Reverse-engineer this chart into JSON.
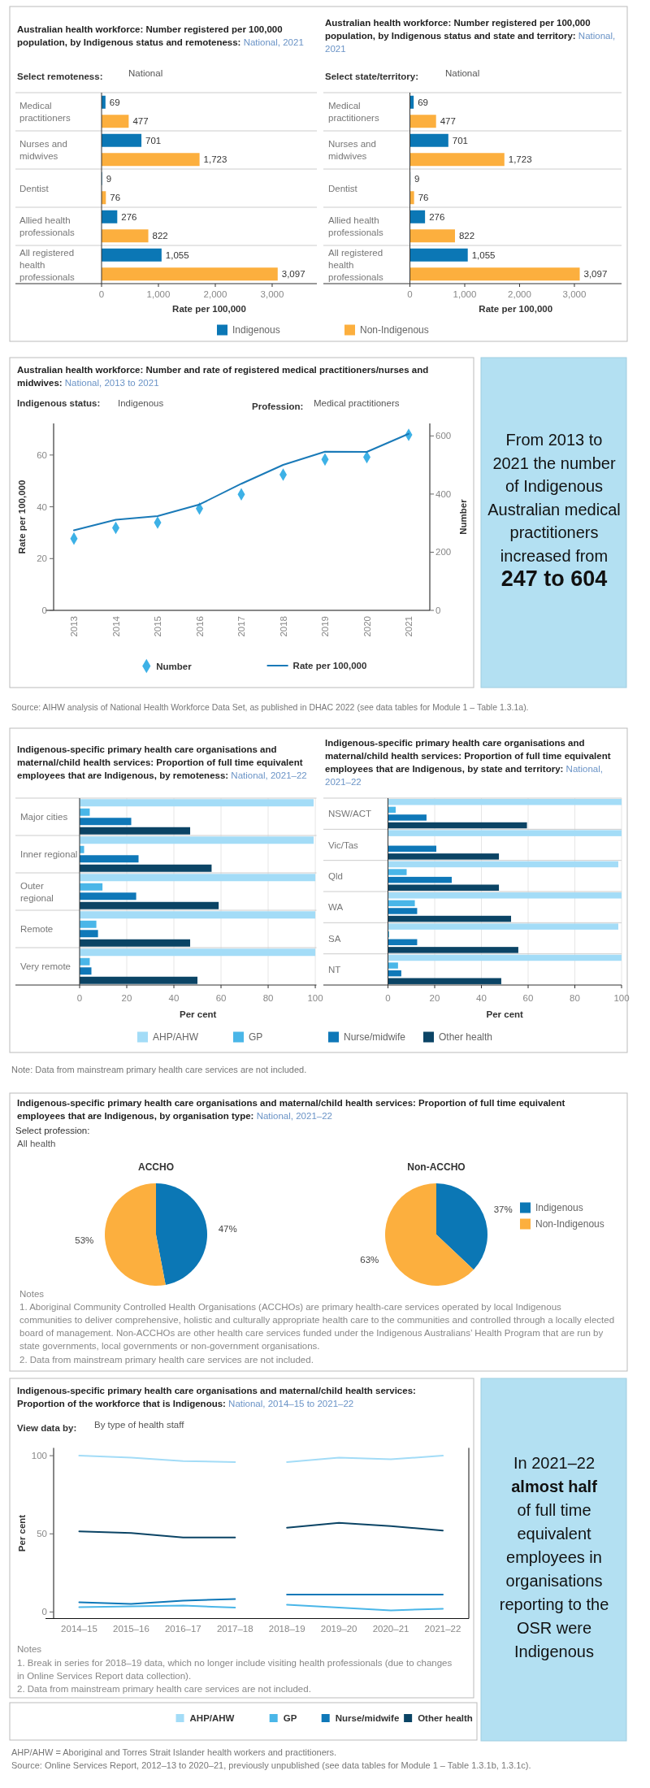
{
  "chart_data": [
    {
      "type": "bar",
      "orientation": "horizontal",
      "title": "Australian health workforce: Number registered per 100,000 population, by Indigenous status and remoteness:",
      "subtitle": "National, 2021",
      "annotations": [
        "Select remoteness:",
        "National"
      ],
      "categories": [
        "Medical practitioners",
        "Nurses and midwives",
        "Dentist",
        "Allied health professionals",
        "All registered health professionals"
      ],
      "series": [
        {
          "name": "Indigenous",
          "color": "#0b77b5",
          "values": [
            69,
            701,
            9,
            276,
            1055
          ],
          "value_labels": [
            "69",
            "701",
            "9",
            "276",
            "1,055"
          ]
        },
        {
          "name": "Non-Indigenous",
          "color": "#fcaf3e",
          "values": [
            477,
            1723,
            76,
            822,
            3097
          ],
          "value_labels": [
            "477",
            "1,723",
            "76",
            "822",
            "3,097"
          ]
        }
      ],
      "xlim": [
        0,
        3786
      ],
      "xticks": [
        0,
        {
          "value": 1000,
          "label": "1,000"
        },
        {
          "value": 2000,
          "label": "2,000"
        },
        {
          "value": 3000,
          "label": "3,000"
        }
      ],
      "xlabel": "Rate per 100,000",
      "legend": "bottom"
    },
    {
      "type": "bar",
      "orientation": "horizontal",
      "title": "Australian health workforce: Number registered per 100,000 population, by Indigenous status and state and territory:",
      "subtitle": "National, 2021",
      "annotations": [
        "Select state/territory:",
        "National"
      ],
      "categories": [
        "Medical practitioners",
        "Nurses and midwives",
        "Dentist",
        "Allied health professionals",
        "All registered health professionals"
      ],
      "series": [
        {
          "color": "#0b77b5",
          "values": [
            69,
            701,
            9,
            276,
            1055
          ],
          "value_labels": [
            "69",
            "701",
            "9",
            "276",
            "1,055"
          ]
        },
        {
          "color": "#fcaf3e",
          "values": [
            477,
            1723,
            76,
            822,
            3097
          ],
          "value_labels": [
            "477",
            "1,723",
            "76",
            "822",
            "3,097"
          ]
        }
      ],
      "xlim": [
        0,
        3860
      ],
      "xticks": [
        0,
        {
          "value": 1000,
          "label": "1,000"
        },
        {
          "value": 2000,
          "label": "2,000"
        },
        {
          "value": 3000,
          "label": "3,000"
        }
      ],
      "xlabel": "Rate per 100,000"
    },
    {
      "type": "line",
      "title": "Australian health workforce: Number and rate of registered medical practitioners/nurses and midwives:",
      "subtitle": "National, 2013 to 2021",
      "annotations": [
        "Indigenous status:",
        "Indigenous",
        "Profession:",
        "Medical practitioners",
        "Source: AIHW analysis of National Health Workforce Data Set, as published in DHAC 2022 (see data tables for Module 1 – Table 1.3.1a)."
      ],
      "categories": [
        "2013",
        "2014",
        "2015",
        "2016",
        "2017",
        "2018",
        "2019",
        "2020",
        "2021"
      ],
      "series": [
        {
          "name": "Number",
          "type": "scatter",
          "marker": "diamond",
          "axis": "y2",
          "color": "#3db1e6",
          "values": [
            247,
            284,
            302,
            350,
            399,
            467,
            519,
            527,
            604
          ]
        },
        {
          "name": "Rate per 100,000",
          "type": "line",
          "color": "#1a7ab8",
          "values": [
            30.9,
            35.0,
            36.4,
            40.9,
            48.9,
            56.2,
            61.3,
            61.2,
            68.2
          ]
        }
      ],
      "ylim": [
        0,
        72.2
      ],
      "yticks": [
        0,
        20,
        40,
        60
      ],
      "y2lim": [
        0,
        643
      ],
      "y2ticks": [
        0,
        200,
        400,
        600
      ],
      "ylabel": "Rate per 100,000",
      "y2label": "Number",
      "legend": "bottom"
    },
    {
      "type": "other",
      "annotations": [
        "From 2013 to 2021 the number of Indigenous Australian medical practitioners increased from",
        "247 to 604"
      ]
    },
    {
      "type": "bar",
      "orientation": "horizontal",
      "title": "Indigenous-specific primary health care organisations and maternal/child health services: Proportion of full time equivalent employees that are Indigenous, by remoteness:",
      "subtitle": "National, 2021–22",
      "annotations": [
        "Note: Data from mainstream primary health care services are not included."
      ],
      "categories": [
        "Major cities",
        "Inner regional",
        "Outer regional",
        "Remote",
        "Very remote"
      ],
      "series": [
        {
          "name": "AHP/AHW",
          "color": "#a3dcf7",
          "values": [
            99.3,
            99.3,
            100,
            100,
            100
          ]
        },
        {
          "name": "GP",
          "color": "#4ab6e8",
          "values": [
            4.3,
            1.9,
            9.7,
            7.1,
            4.3
          ]
        },
        {
          "name": "Nurse/midwife",
          "color": "#0f78b8",
          "values": [
            21.9,
            25.0,
            24.0,
            7.8,
            5.0
          ]
        },
        {
          "name": "Other health",
          "color": "#0b4465",
          "values": [
            46.9,
            56.0,
            59.0,
            46.9,
            50.0
          ]
        }
      ],
      "xlim": [
        0,
        100.5
      ],
      "xticks": [
        0,
        20,
        40,
        60,
        80,
        100
      ],
      "xlabel": "Per cent",
      "grid": "x",
      "legend": "bottom"
    },
    {
      "type": "bar",
      "orientation": "horizontal",
      "title": "Indigenous-specific primary health care organisations and maternal/child health services: Proportion of full time equivalent employees that are Indigenous, by state and territory:",
      "subtitle": "National, 2021–22",
      "categories": [
        "NSW/ACT",
        "Vic/Tas",
        "Qld",
        "WA",
        "SA",
        "NT"
      ],
      "series": [
        {
          "color": "#a3dcf7",
          "values": [
            100,
            100,
            98.6,
            100,
            98.6,
            100
          ]
        },
        {
          "color": "#4ab6e8",
          "values": [
            3.3,
            null,
            8.0,
            11.5,
            0.5,
            4.3
          ]
        },
        {
          "color": "#0f78b8",
          "values": [
            16.5,
            20.7,
            27.3,
            12.5,
            12.5,
            5.7
          ]
        },
        {
          "color": "#0b4465",
          "values": [
            59.5,
            47.5,
            47.5,
            52.7,
            55.8,
            48.5
          ]
        }
      ],
      "xlim": [
        0,
        100
      ],
      "xticks": [
        0,
        20,
        40,
        60,
        80,
        100
      ],
      "xlabel": "Per cent",
      "grid": "x"
    },
    {
      "type": "pie",
      "title": "ACCHO",
      "annotations": [
        "Indigenous-specific primary health care organisations and maternal/child health services: Proportion of full time equivalent employees that are Indigenous, by organisation type:",
        "National, 2021–22",
        "Select profession:",
        "All health",
        "Notes",
        "1. Aboriginal Community Controlled Health Organisations (ACCHOs) are primary health-care services operated by local Indigenous communities to deliver comprehensive, holistic and culturally appropriate health care to the communities and controlled through a locally elected board of management. Non-ACCHOs are other health care services funded under the Indigenous Australians’ Health Program that are run by state governments, local governments or non-government organisations.",
        "2. Data from mainstream primary health care services are not included."
      ],
      "categories": [
        null,
        null
      ],
      "values": [
        47,
        53
      ],
      "colors": [
        "#0b77b5",
        "#fcaf3e"
      ],
      "value_labels": [
        "47%",
        "53%"
      ]
    },
    {
      "type": "pie",
      "title": "Non-ACCHO",
      "categories": [
        "Indigenous",
        "Non-Indigenous"
      ],
      "values": [
        37,
        63
      ],
      "colors": [
        "#0b77b5",
        "#fcaf3e"
      ],
      "value_labels": [
        "37%",
        "63%"
      ],
      "legend": "right"
    },
    {
      "type": "line",
      "title": "Indigenous-specific primary health care organisations and maternal/child health services: Proportion of the workforce that is Indigenous:",
      "subtitle": "National, 2014–15 to 2021–22",
      "annotations": [
        "View data by:",
        "By type of health staff",
        "Notes",
        "1. Break in series for 2018–19 data, which no longer include visiting health professionals (due to changes in Online Services Report data collection).",
        "2. Data from mainstream primary health care services are not included.",
        "AHP/AHW = Aboriginal and Torres Strait Islander health workers and practitioners.",
        "Source: Online Services Report, 2012–13 to 2020–21, previously unpublished (see data tables for Module 1  – Table 1.3.1b, 1.3.1c)."
      ],
      "categories": [
        "2014–15",
        "2015–16",
        "2016–17",
        "2017–18",
        "2018–19",
        "2019–20",
        "2020–21",
        "2021–22"
      ],
      "series": [
        {
          "name": "AHP/AHW",
          "color": "#a3dcf7",
          "values": [
            100,
            98.7,
            96.6,
            95.9,
            null,
            null,
            null,
            null
          ]
        },
        {
          "name": "GP",
          "color": "#4ab6e8",
          "values": [
            3.1,
            3.6,
            4.1,
            2.8,
            null,
            null,
            null,
            null
          ]
        },
        {
          "name": "Nurse/midwife",
          "color": "#0f78b8",
          "values": [
            6.2,
            5.2,
            7.3,
            8.3,
            null,
            null,
            null,
            null
          ]
        },
        {
          "name": "Other health",
          "color": "#0b4465",
          "values": [
            51.6,
            50.5,
            47.7,
            47.7,
            null,
            null,
            null,
            null
          ]
        },
        {
          "color": "#a3dcf7",
          "values": [
            null,
            null,
            null,
            null,
            95.9,
            98.7,
            97.7,
            100
          ]
        },
        {
          "color": "#4ab6e8",
          "values": [
            null,
            null,
            null,
            null,
            4.7,
            2.8,
            1.0,
            2.1
          ]
        },
        {
          "color": "#0f78b8",
          "values": [
            null,
            null,
            null,
            null,
            11.1,
            11.1,
            11.1,
            11.1
          ]
        },
        {
          "color": "#0b4465",
          "values": [
            null,
            null,
            null,
            null,
            53.9,
            57.0,
            54.9,
            52.1
          ]
        }
      ],
      "ylim": [
        -4.2,
        105
      ],
      "yticks": [
        0,
        50,
        100
      ],
      "ylabel": "Per cent",
      "legend": "bottom"
    },
    {
      "type": "other",
      "annotations": [
        "In 2021–22",
        "almost half",
        "of full time equivalent employees in organisations reporting to the OSR were Indigenous"
      ]
    }
  ]
}
